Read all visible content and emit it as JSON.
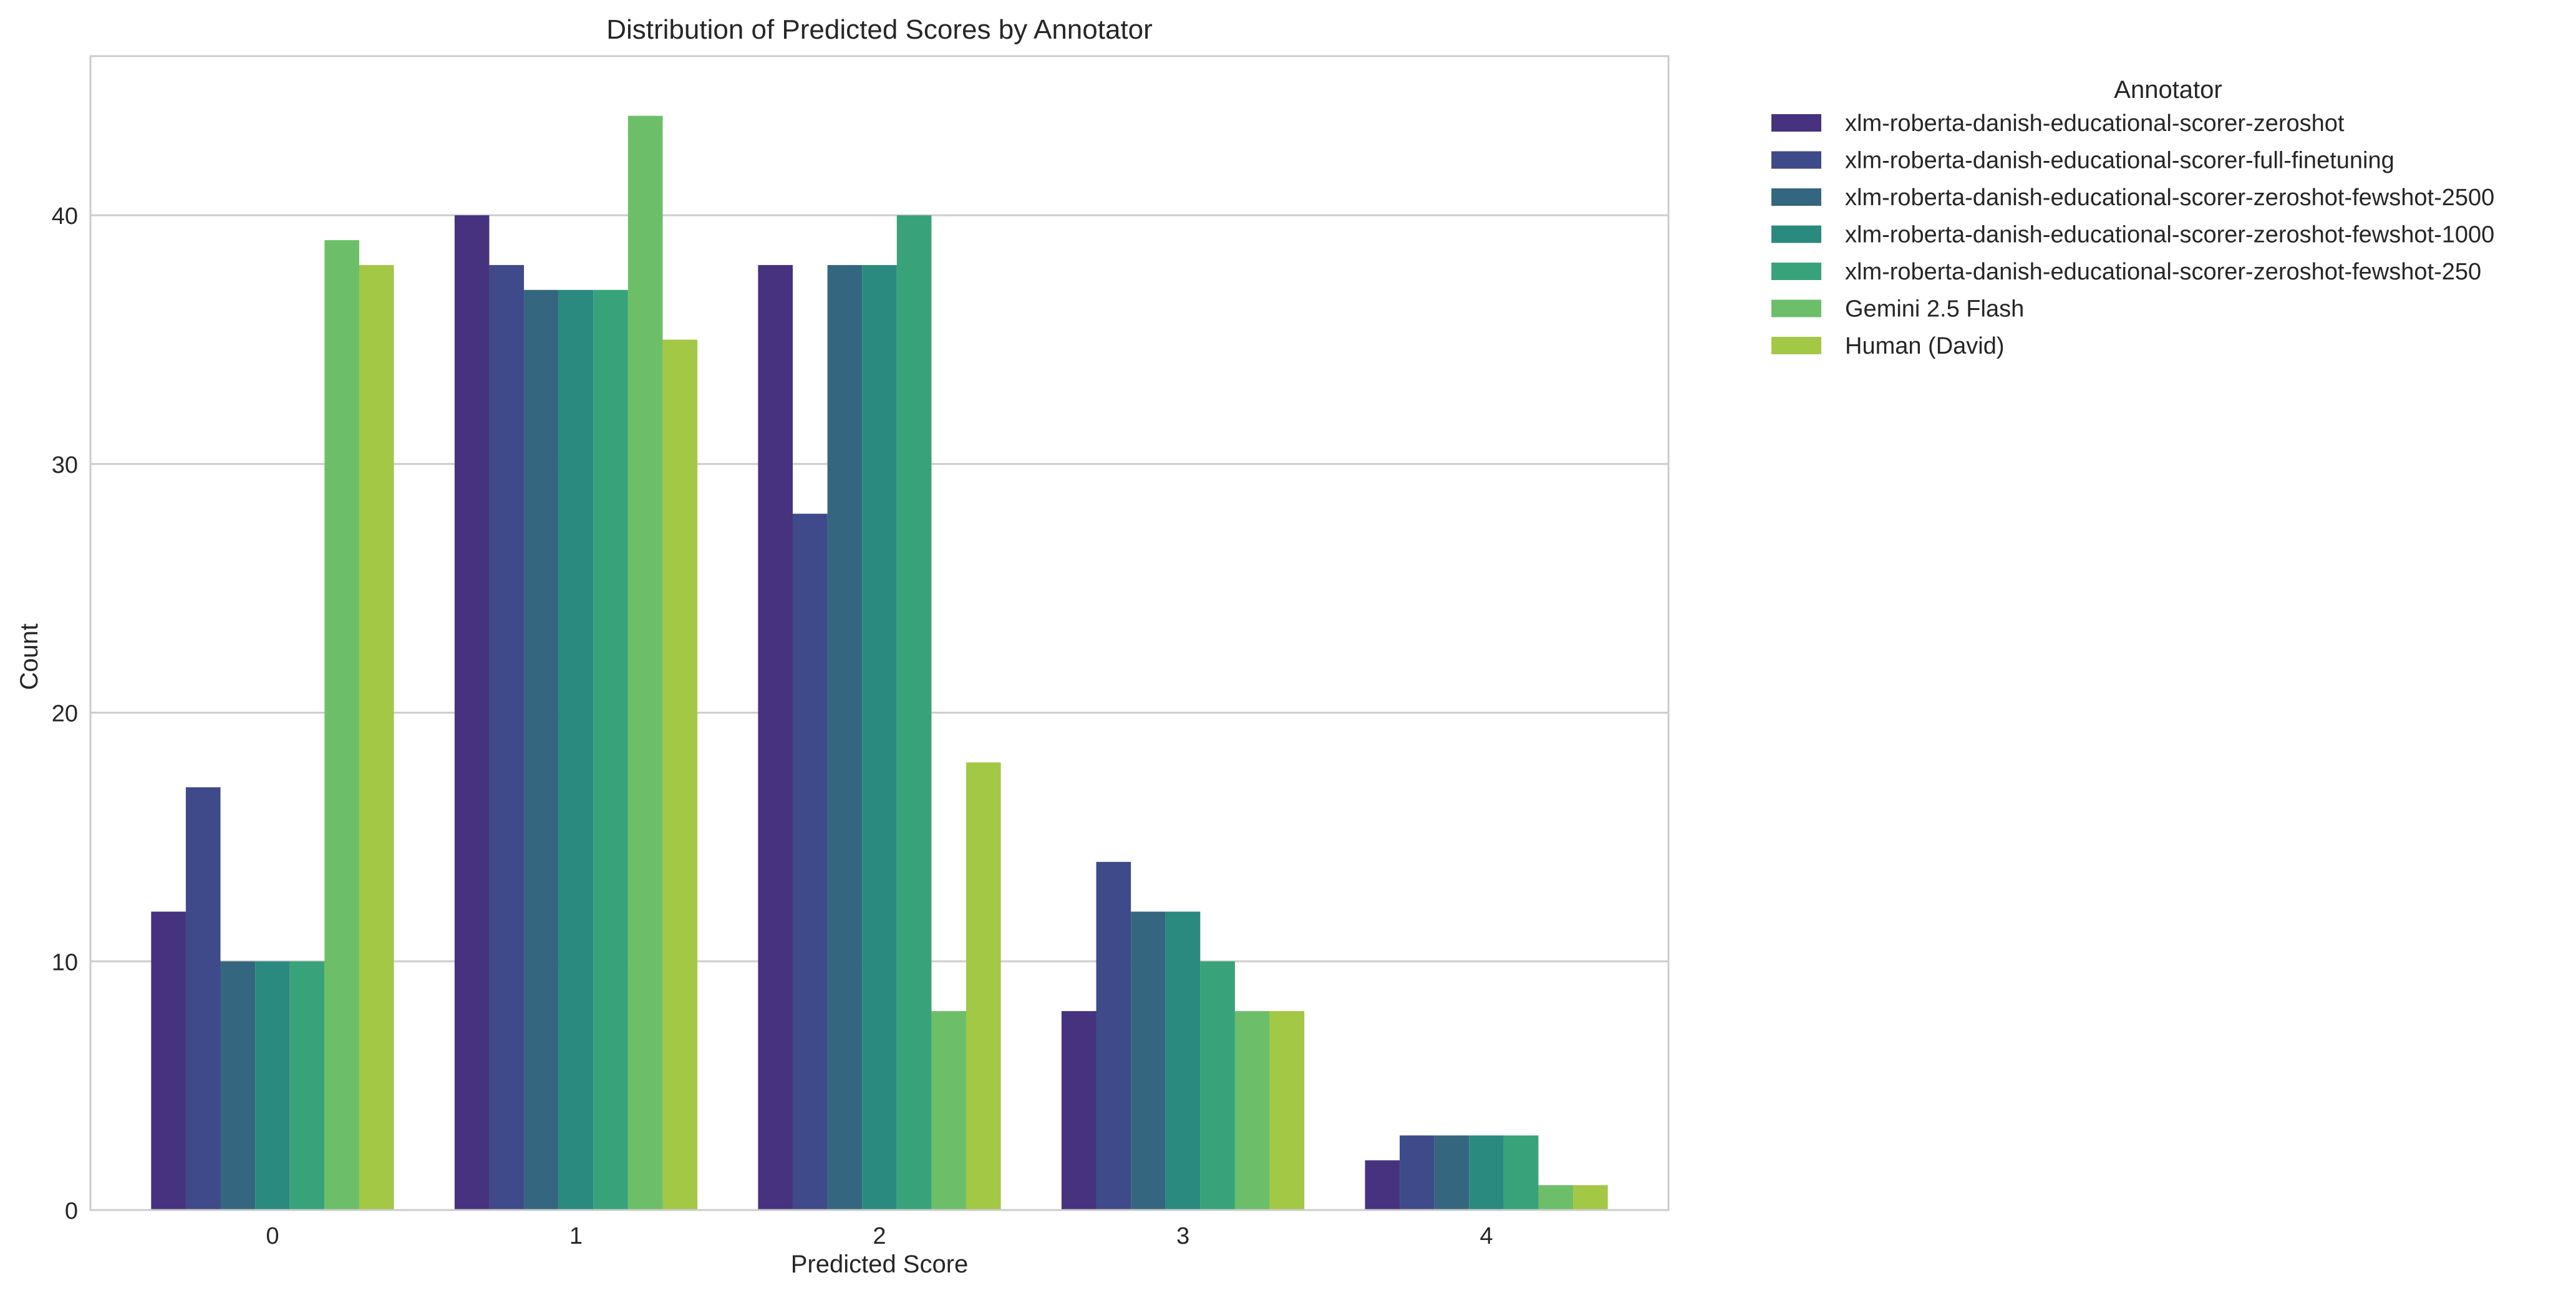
{
  "chart_data": {
    "type": "bar",
    "title": "Distribution of Predicted Scores by Annotator",
    "xlabel": "Predicted Score",
    "ylabel": "Count",
    "categories": [
      "0",
      "1",
      "2",
      "3",
      "4"
    ],
    "ylim": [
      0,
      46.4
    ],
    "yticks": [
      0,
      10,
      20,
      30,
      40
    ],
    "grid": "y",
    "legend": {
      "title": "Annotator",
      "placement": "outside-right-top"
    },
    "series": [
      {
        "name": "xlm-roberta-danish-educational-scorer-zeroshot",
        "color": "#46327e",
        "values": [
          12,
          40,
          38,
          8,
          2
        ]
      },
      {
        "name": "xlm-roberta-danish-educational-scorer-full-finetuning",
        "color": "#3e4a89",
        "values": [
          17,
          38,
          28,
          14,
          3
        ]
      },
      {
        "name": "xlm-roberta-danish-educational-scorer-zeroshot-fewshot-2500",
        "color": "#34677f",
        "values": [
          10,
          37,
          38,
          12,
          3
        ]
      },
      {
        "name": "xlm-roberta-danish-educational-scorer-zeroshot-fewshot-1000",
        "color": "#2a8a80",
        "values": [
          10,
          37,
          38,
          12,
          3
        ]
      },
      {
        "name": "xlm-roberta-danish-educational-scorer-zeroshot-fewshot-250",
        "color": "#38a37a",
        "values": [
          10,
          37,
          40,
          10,
          3
        ]
      },
      {
        "name": "Gemini 2.5 Flash",
        "color": "#6cbf68",
        "values": [
          39,
          44,
          8,
          8,
          1
        ]
      },
      {
        "name": "Human (David)",
        "color": "#a3c845",
        "values": [
          38,
          35,
          18,
          8,
          1
        ]
      }
    ]
  }
}
